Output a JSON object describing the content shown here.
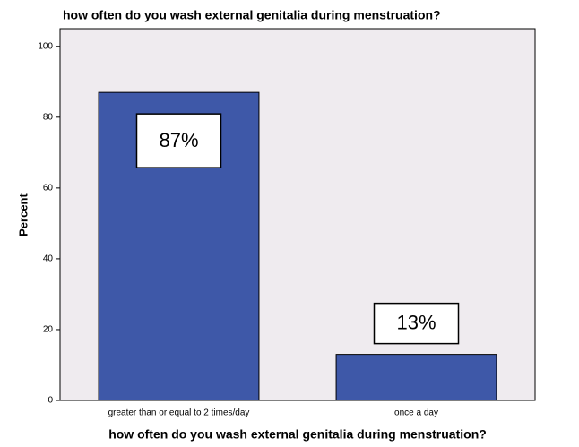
{
  "chart_data": {
    "type": "bar",
    "title": "how often do you wash external genitalia during menstruation?",
    "x_label": "how often do you wash external genitalia during menstruation?",
    "y_label": "Percent",
    "categories": [
      "greater than or equal to 2 times/day",
      "once a day"
    ],
    "values": [
      87,
      13
    ],
    "value_labels": [
      "87%",
      "13%"
    ],
    "color": "#3e58a8",
    "ylim": [
      0,
      105
    ],
    "yticks": [
      0,
      20,
      40,
      60,
      80,
      100
    ],
    "grid": false
  }
}
